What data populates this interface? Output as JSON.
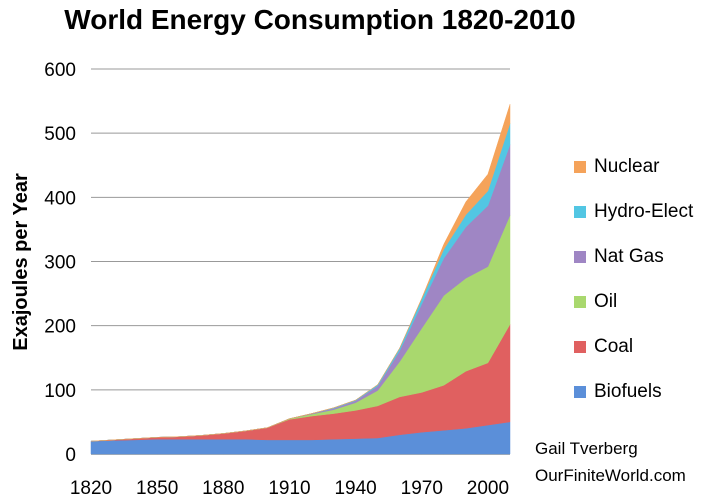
{
  "chart_data": {
    "type": "area",
    "stacked": true,
    "title": "World Energy Consumption 1820-2010",
    "ylabel": "Exajoules per Year",
    "xlabel": "",
    "x": [
      1820,
      1830,
      1840,
      1850,
      1860,
      1870,
      1880,
      1890,
      1900,
      1910,
      1920,
      1930,
      1940,
      1950,
      1960,
      1970,
      1980,
      1990,
      2000,
      2010
    ],
    "xlim": [
      1820,
      2010
    ],
    "ylim": [
      0,
      600
    ],
    "x_ticks": [
      "1820",
      "1850",
      "1880",
      "1910",
      "1940",
      "1970",
      "2000"
    ],
    "y_ticks": [
      "0",
      "100",
      "200",
      "300",
      "400",
      "500",
      "600"
    ],
    "grid": "horizontal",
    "legend_position": "right",
    "series": [
      {
        "name": "Biofuels",
        "color": "#5b8fd9",
        "values": [
          20,
          21,
          22,
          23,
          23,
          23,
          23,
          23,
          22,
          22,
          22,
          23,
          24,
          25,
          30,
          34,
          37,
          40,
          45,
          50
        ]
      },
      {
        "name": "Coal",
        "color": "#e06060",
        "values": [
          0,
          1,
          2,
          3,
          4,
          6,
          9,
          13,
          19,
          32,
          37,
          40,
          44,
          50,
          59,
          62,
          70,
          89,
          97,
          152
        ]
      },
      {
        "name": "Oil",
        "color": "#a9d86e",
        "values": [
          0,
          0,
          0,
          0,
          0,
          0,
          0,
          0,
          0,
          1,
          3,
          6,
          12,
          24,
          55,
          100,
          140,
          145,
          150,
          170
        ]
      },
      {
        "name": "Nat Gas",
        "color": "#9f86c4",
        "values": [
          0,
          0,
          0,
          0,
          0,
          0,
          0,
          0,
          0,
          0,
          1,
          2,
          3,
          7,
          17,
          38,
          58,
          80,
          95,
          110
        ]
      },
      {
        "name": "Hydro-Elect",
        "color": "#52c6e3",
        "values": [
          0,
          0,
          0,
          0,
          0,
          0,
          0,
          0,
          0,
          0,
          0,
          1,
          1,
          2,
          4,
          8,
          14,
          19,
          23,
          33
        ]
      },
      {
        "name": "Nuclear",
        "color": "#f5a35a",
        "values": [
          0,
          0,
          0,
          0,
          0,
          0,
          0,
          0,
          0,
          0,
          0,
          0,
          0,
          0,
          0,
          1,
          8,
          20,
          26,
          30
        ]
      }
    ]
  },
  "credit": {
    "author": "Gail Tverberg",
    "site": "OurFiniteWorld.com"
  }
}
